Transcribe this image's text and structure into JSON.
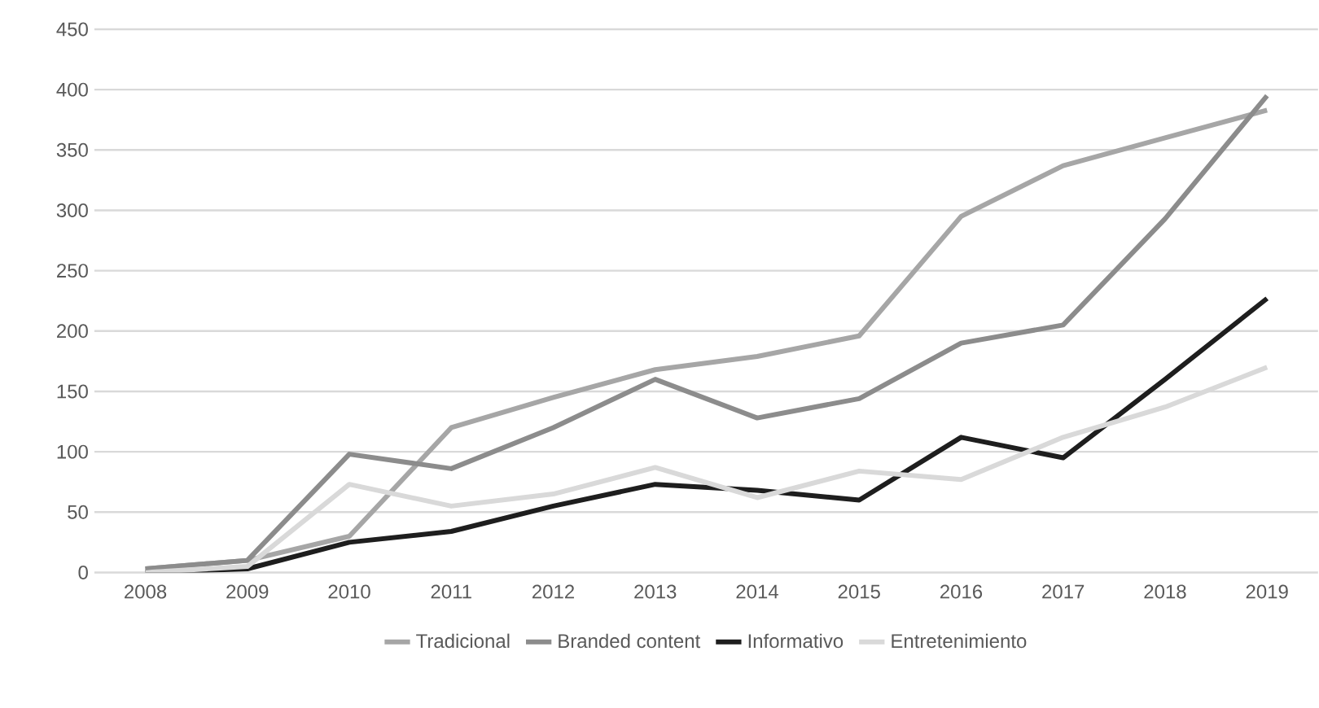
{
  "chart_data": {
    "type": "line",
    "categories": [
      "2008",
      "2009",
      "2010",
      "2011",
      "2012",
      "2013",
      "2014",
      "2015",
      "2016",
      "2017",
      "2018",
      "2019"
    ],
    "series": [
      {
        "name": "Tradicional",
        "color": "#a6a6a6",
        "values": [
          3,
          10,
          30,
          120,
          145,
          168,
          179,
          196,
          295,
          337,
          360,
          383
        ]
      },
      {
        "name": "Branded content",
        "color": "#8c8c8c",
        "values": [
          3,
          10,
          98,
          86,
          120,
          160,
          128,
          144,
          190,
          205,
          293,
          395
        ]
      },
      {
        "name": "Informativo",
        "color": "#1e1e1e",
        "values": [
          0,
          3,
          25,
          34,
          55,
          73,
          68,
          60,
          112,
          95,
          160,
          227
        ]
      },
      {
        "name": "Entretenimiento",
        "color": "#d9d9d9",
        "values": [
          0,
          5,
          73,
          55,
          65,
          87,
          62,
          84,
          77,
          112,
          137,
          170
        ]
      }
    ],
    "ylim": [
      0,
      450
    ],
    "yticks": [
      0,
      50,
      100,
      150,
      200,
      250,
      300,
      350,
      400,
      450
    ],
    "grid": "y",
    "legend": "bottom",
    "marker": "none",
    "line_style": "solid"
  }
}
